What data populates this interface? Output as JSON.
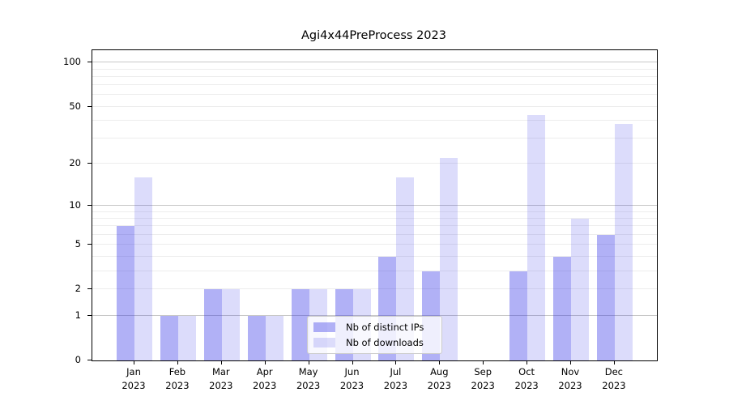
{
  "figure": {
    "title": "Agi4x44PreProcess 2023"
  },
  "x_axis": {
    "months": [
      "Jan",
      "Feb",
      "Mar",
      "Apr",
      "May",
      "Jun",
      "Jul",
      "Aug",
      "Sep",
      "Oct",
      "Nov",
      "Dec"
    ],
    "year": "2023"
  },
  "y_axis": {
    "tick_labels": [
      "100",
      "50",
      "20",
      "10",
      "5",
      "2",
      "1",
      "0"
    ],
    "tick_values": [
      100,
      50,
      20,
      10,
      5,
      2,
      1,
      0
    ]
  },
  "legend": {
    "items": [
      {
        "label": "Nb of distinct IPs"
      },
      {
        "label": "Nb of downloads"
      }
    ]
  },
  "colors": {
    "bar_distinct_ips": "rgba(40,40,230,0.36)",
    "bar_downloads": "rgba(40,40,230,0.16)",
    "bar_distinct_ips_hex": "#aaaaf4",
    "bar_downloads_hex": "#d9d9f9",
    "grid_major": "#c8c8c8",
    "grid_minor": "#ededed",
    "axis": "#000000",
    "legend_border": "#cccccc"
  },
  "chart_data": {
    "type": "bar",
    "title": "Agi4x44PreProcess 2023",
    "categories": [
      "Jan 2023",
      "Feb 2023",
      "Mar 2023",
      "Apr 2023",
      "May 2023",
      "Jun 2023",
      "Jul 2023",
      "Aug 2023",
      "Sep 2023",
      "Oct 2023",
      "Nov 2023",
      "Dec 2023"
    ],
    "series": [
      {
        "name": "Nb of distinct IPs",
        "values": [
          7,
          1,
          2,
          1,
          2,
          2,
          4,
          3,
          0,
          3,
          4,
          6
        ]
      },
      {
        "name": "Nb of downloads",
        "values": [
          16,
          1,
          2,
          1,
          2,
          2,
          16,
          22,
          0,
          44,
          8,
          38
        ]
      }
    ],
    "yscale": "log1p",
    "ylim": [
      0,
      120
    ],
    "ytick_values": [
      0,
      1,
      2,
      5,
      10,
      20,
      50,
      100
    ],
    "grid": true,
    "grid_major_values": [
      1,
      10,
      100
    ],
    "grid_minor_values": [
      2,
      3,
      4,
      5,
      6,
      7,
      8,
      9,
      20,
      30,
      40,
      50,
      60,
      70,
      80,
      90
    ],
    "legend_position": "lower center inside"
  }
}
